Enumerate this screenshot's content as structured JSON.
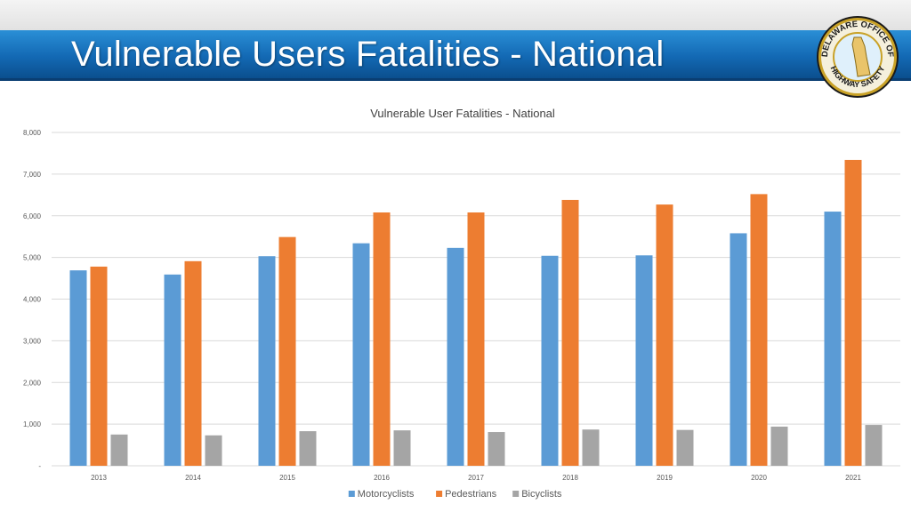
{
  "slide": {
    "title": "Vulnerable Users Fatalities - National"
  },
  "logo": {
    "text_top": "DELAWARE OFFICE OF",
    "text_bottom": "HIGHWAY SAFETY",
    "colors": {
      "ring": "#c9a227",
      "inner": "#dff0fb",
      "state": "#e9c46a",
      "text": "#1a1a1a"
    }
  },
  "colors": {
    "motorcyclists": "#5b9bd5",
    "pedestrians": "#ed7d31",
    "bicyclists": "#a5a5a5",
    "grid": "#d9d9d9",
    "axis_text": "#595959"
  },
  "chart_data": {
    "type": "bar",
    "title": "Vulnerable User Fatalities - National",
    "xlabel": "",
    "ylabel": "",
    "categories": [
      "2013",
      "2014",
      "2015",
      "2016",
      "2017",
      "2018",
      "2019",
      "2020",
      "2021"
    ],
    "series": [
      {
        "name": "Motorcyclists",
        "values": [
          4690,
          4590,
          5030,
          5340,
          5230,
          5040,
          5050,
          5580,
          6100
        ]
      },
      {
        "name": "Pedestrians",
        "values": [
          4780,
          4910,
          5490,
          6080,
          6080,
          6380,
          6270,
          6520,
          7340
        ]
      },
      {
        "name": "Bicyclists",
        "values": [
          750,
          730,
          830,
          850,
          810,
          870,
          860,
          940,
          980
        ]
      }
    ],
    "ylim": [
      0,
      8000
    ],
    "yticks": [
      0,
      1000,
      2000,
      3000,
      4000,
      5000,
      6000,
      7000,
      8000
    ],
    "ytick_labels": [
      "-",
      "1,000",
      "2,000",
      "3,000",
      "4,000",
      "5,000",
      "6,000",
      "7,000",
      "8,000"
    ],
    "legend_position": "bottom",
    "grid": true
  }
}
